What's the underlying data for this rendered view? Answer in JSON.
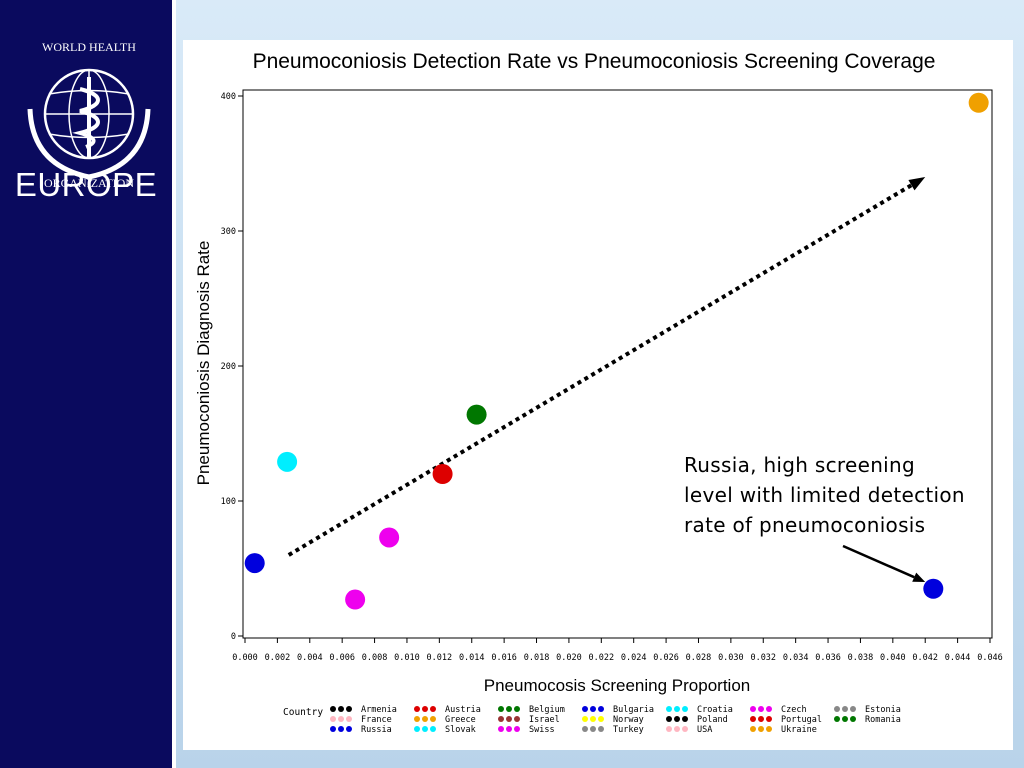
{
  "branding": {
    "org": "WORLD HEALTH ORGANIZATION",
    "region": "EUROPE"
  },
  "chart_data": {
    "type": "scatter",
    "title": "Pneumoconiosis Detection Rate vs Pneumoconiosis Screening Coverage",
    "xlabel": "Pneumocosis Screening Proportion",
    "ylabel": "Pneumoconiosis Diagnosis Rate",
    "xlim": [
      0,
      0.046
    ],
    "ylim": [
      0,
      400
    ],
    "xticks": [
      "0.000",
      "0.002",
      "0.004",
      "0.006",
      "0.008",
      "0.010",
      "0.012",
      "0.014",
      "0.016",
      "0.018",
      "0.020",
      "0.022",
      "0.024",
      "0.026",
      "0.028",
      "0.030",
      "0.032",
      "0.034",
      "0.036",
      "0.038",
      "0.040",
      "0.042",
      "0.044",
      "0.046"
    ],
    "yticks": [
      "0",
      "100",
      "200",
      "300",
      "400"
    ],
    "points": [
      {
        "x": 0.0006,
        "y": 54,
        "color": "#0000dd"
      },
      {
        "x": 0.0026,
        "y": 129,
        "color": "#00eeff"
      },
      {
        "x": 0.0068,
        "y": 27,
        "color": "#ee00ee"
      },
      {
        "x": 0.0089,
        "y": 73,
        "color": "#ee00ee"
      },
      {
        "x": 0.0122,
        "y": 120,
        "color": "#dd0000"
      },
      {
        "x": 0.0143,
        "y": 164,
        "color": "#007700"
      },
      {
        "x": 0.0425,
        "y": 35,
        "color": "#0000dd"
      },
      {
        "x": 0.0453,
        "y": 395,
        "color": "#f0a000"
      }
    ],
    "trend_arrow": {
      "from": [
        0.0027,
        60
      ],
      "to": [
        0.042,
        340
      ]
    },
    "annotation": {
      "lines": [
        "Russia, high screening",
        "level with limited detection",
        "rate of pneumoconiosis"
      ],
      "points_to": [
        0.042,
        40
      ]
    },
    "legend": {
      "title": "Country",
      "entries": [
        {
          "name": "Armenia",
          "color": "#000000"
        },
        {
          "name": "Austria",
          "color": "#dd0000"
        },
        {
          "name": "Belgium",
          "color": "#007700"
        },
        {
          "name": "Bulgaria",
          "color": "#0000dd"
        },
        {
          "name": "Croatia",
          "color": "#00eeff"
        },
        {
          "name": "Czech",
          "color": "#ee00ee"
        },
        {
          "name": "Estonia",
          "color": "#888888"
        },
        {
          "name": "France",
          "color": "#ffb6c1"
        },
        {
          "name": "Greece",
          "color": "#f0a000"
        },
        {
          "name": "Israel",
          "color": "#993333"
        },
        {
          "name": "Norway",
          "color": "#ffff00"
        },
        {
          "name": "Poland",
          "color": "#000000"
        },
        {
          "name": "Portugal",
          "color": "#dd0000"
        },
        {
          "name": "Romania",
          "color": "#007700"
        },
        {
          "name": "Russia",
          "color": "#0000dd"
        },
        {
          "name": "Slovak",
          "color": "#00eeff"
        },
        {
          "name": "Swiss",
          "color": "#ee00ee"
        },
        {
          "name": "Turkey",
          "color": "#888888"
        },
        {
          "name": "USA",
          "color": "#ffb6c1"
        },
        {
          "name": "Ukraine",
          "color": "#f0a000"
        }
      ]
    }
  }
}
